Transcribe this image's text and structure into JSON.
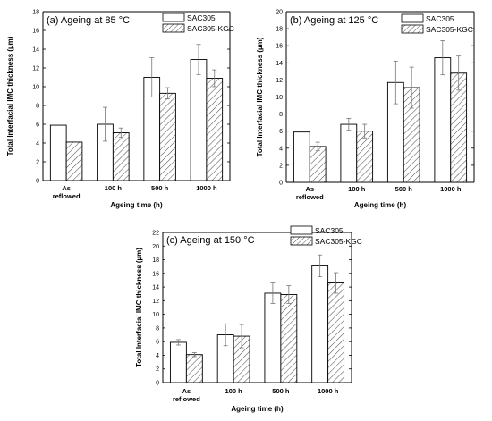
{
  "colors": {
    "axis": "#000000",
    "bar_fill": "#ffffff",
    "hatch": "#555555",
    "error": "#777777"
  },
  "chart_data": [
    {
      "type": "bar",
      "title": "(a) Ageing at 85 °C",
      "xlabel": "Ageing time (h)",
      "ylabel": "Total Interfacial IMC thickness (µm)",
      "categories": [
        "As\nreflowed",
        "100 h",
        "500 h",
        "1000 h"
      ],
      "ylim": [
        0,
        18
      ],
      "yticks": [
        0,
        2,
        4,
        6,
        8,
        10,
        12,
        14,
        16,
        18
      ],
      "legend": "top-right",
      "grid": false,
      "series": [
        {
          "name": "SAC305",
          "pattern": "plain",
          "values": [
            5.9,
            6.0,
            11.0,
            12.9
          ],
          "errors": [
            0.0,
            1.8,
            2.1,
            1.6
          ]
        },
        {
          "name": "SAC305-KGC",
          "pattern": "hatched",
          "values": [
            4.1,
            5.1,
            9.3,
            10.9
          ],
          "errors": [
            0.0,
            0.5,
            0.6,
            0.9
          ]
        }
      ]
    },
    {
      "type": "bar",
      "title": "(b) Ageing at 125 °C",
      "xlabel": "Ageing time (h)",
      "ylabel": "Total Interfacial IMC thickness (µm)",
      "categories": [
        "As\nreflowed",
        "100 h",
        "500 h",
        "1000 h"
      ],
      "ylim": [
        0,
        20
      ],
      "yticks": [
        0,
        2,
        4,
        6,
        8,
        10,
        12,
        14,
        16,
        18,
        20
      ],
      "legend": "top-right",
      "grid": false,
      "series": [
        {
          "name": "SAC305",
          "pattern": "plain",
          "values": [
            5.9,
            6.8,
            11.7,
            14.6
          ],
          "errors": [
            0.0,
            0.7,
            2.5,
            2.0
          ]
        },
        {
          "name": "SAC305-KGC",
          "pattern": "hatched",
          "values": [
            4.2,
            6.0,
            11.1,
            12.8
          ],
          "errors": [
            0.5,
            0.8,
            2.4,
            2.0
          ]
        }
      ]
    },
    {
      "type": "bar",
      "title": "(c) Ageing at 150 °C",
      "xlabel": "Ageing time (h)",
      "ylabel": "Total Interfacial IMC thickness (µm)",
      "categories": [
        "As\nreflowed",
        "100 h",
        "500 h",
        "1000 h"
      ],
      "ylim": [
        0,
        22
      ],
      "yticks": [
        0,
        2,
        4,
        6,
        8,
        10,
        12,
        14,
        16,
        18,
        20,
        22
      ],
      "legend": "top-right",
      "grid": false,
      "series": [
        {
          "name": "SAC305",
          "pattern": "plain",
          "values": [
            5.9,
            7.0,
            13.1,
            17.1
          ],
          "errors": [
            0.4,
            1.6,
            1.5,
            1.6
          ]
        },
        {
          "name": "SAC305-KGC",
          "pattern": "hatched",
          "values": [
            4.1,
            6.8,
            12.9,
            14.6
          ],
          "errors": [
            0.3,
            1.7,
            1.3,
            1.5
          ]
        }
      ]
    }
  ]
}
